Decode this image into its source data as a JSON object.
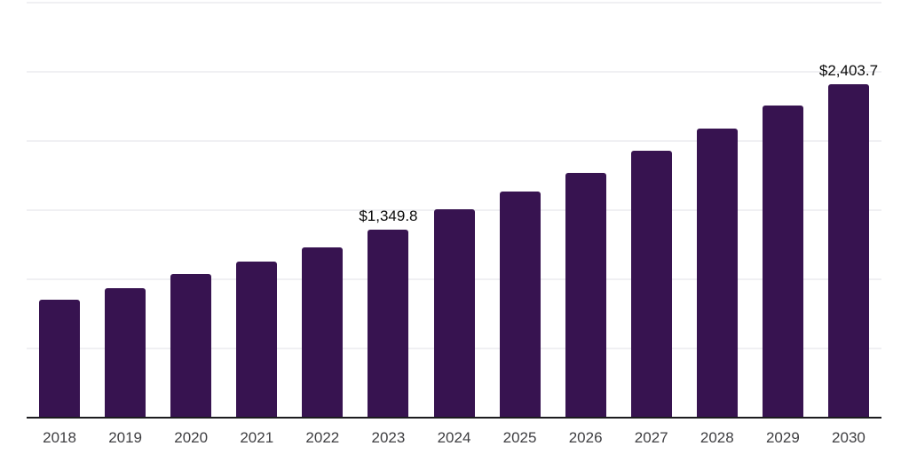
{
  "chart_data": {
    "type": "bar",
    "title": "",
    "xlabel": "",
    "ylabel": "",
    "categories": [
      "2018",
      "2019",
      "2020",
      "2021",
      "2022",
      "2023",
      "2024",
      "2025",
      "2026",
      "2027",
      "2028",
      "2029",
      "2030"
    ],
    "values": [
      845,
      930,
      1032,
      1122,
      1225,
      1349.8,
      1500,
      1627,
      1763,
      1922,
      2083,
      2250,
      2403.7
    ],
    "ylim": [
      0,
      3000
    ],
    "gridline_values": [
      500,
      1000,
      1500,
      2000,
      2500,
      3000
    ],
    "grid": "horizontal",
    "legend_position": "none",
    "data_labels": [
      {
        "category": "2023",
        "text": "$1,349.8"
      },
      {
        "category": "2030",
        "text": "$2,403.7"
      }
    ],
    "colors": {
      "bar": "#371350",
      "axis_line": "#1c1c1e",
      "gridline": "#f0f0f3",
      "tick_label": "#3f3f42",
      "data_label": "#0a0a0a",
      "background": "#ffffff"
    }
  }
}
